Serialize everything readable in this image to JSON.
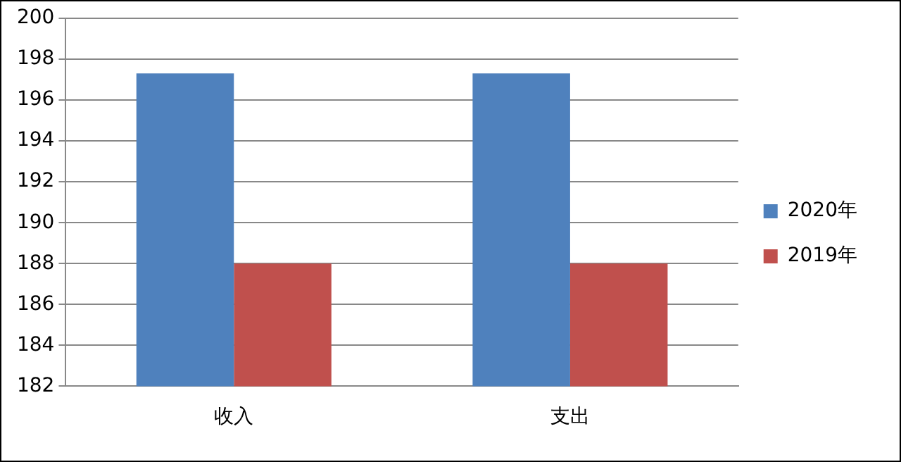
{
  "chart_data": {
    "type": "bar",
    "categories": [
      "收入",
      "支出"
    ],
    "series": [
      {
        "name": "2020年",
        "color": "#4f81bd",
        "values": [
          197.3,
          197.3
        ]
      },
      {
        "name": "2019年",
        "color": "#c0504d",
        "values": [
          188,
          188
        ]
      }
    ],
    "ylim": [
      182,
      200
    ],
    "yticks": [
      182,
      184,
      186,
      188,
      190,
      192,
      194,
      196,
      198,
      200
    ],
    "grid": "y",
    "legend": "right"
  }
}
